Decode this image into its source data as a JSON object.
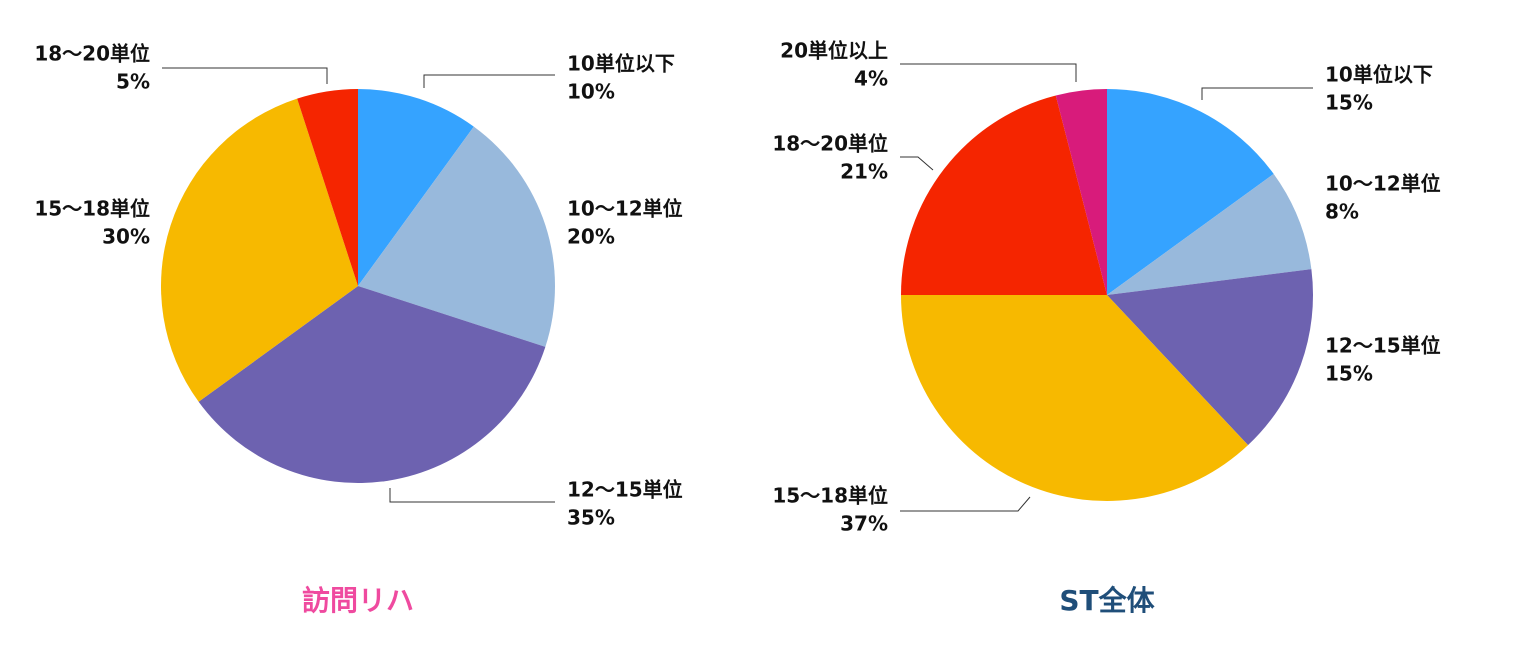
{
  "chart_data": [
    {
      "type": "pie",
      "title": "訪問リハ",
      "title_color": "#ef4a9f",
      "categories": [
        "10単位以下",
        "10〜12単位",
        "12〜15単位",
        "15〜18単位",
        "18〜20単位"
      ],
      "values": [
        10,
        20,
        35,
        30,
        5
      ],
      "value_labels": [
        "10%",
        "20%",
        "35%",
        "30%",
        "5%"
      ],
      "colors": [
        "#35a3ff",
        "#98b9dc",
        "#6d62b0",
        "#f7b900",
        "#f52500"
      ]
    },
    {
      "type": "pie",
      "title": "ST全体",
      "title_color": "#1f4e79",
      "categories": [
        "10単位以下",
        "10〜12単位",
        "12〜15単位",
        "15〜18単位",
        "18〜20単位",
        "20単位以上"
      ],
      "values": [
        15,
        8,
        15,
        37,
        21,
        4
      ],
      "value_labels": [
        "15%",
        "8%",
        "15%",
        "37%",
        "21%",
        "4%"
      ],
      "colors": [
        "#35a3ff",
        "#98b9dc",
        "#6d62b0",
        "#f7b900",
        "#f52500",
        "#d81b7b"
      ]
    }
  ]
}
